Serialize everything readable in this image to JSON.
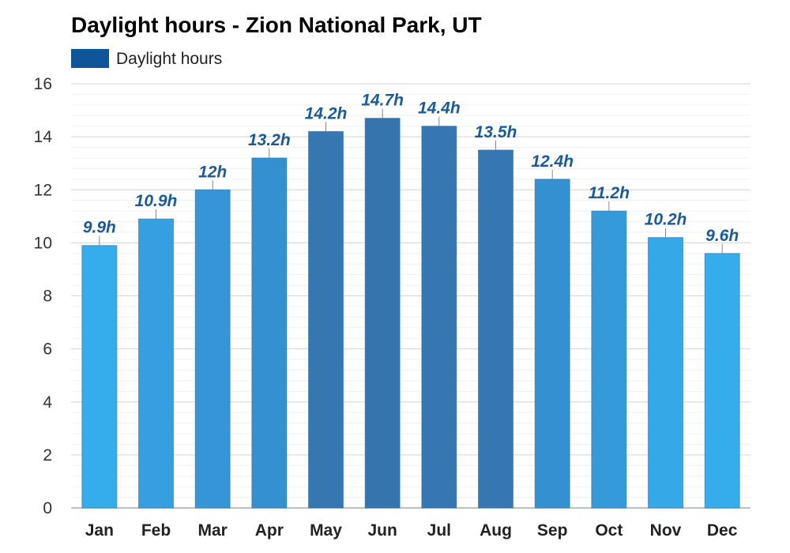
{
  "chart_data": {
    "type": "bar",
    "title": "Daylight hours - Zion National Park, UT",
    "xlabel": "",
    "ylabel": "",
    "ylim": [
      0,
      16
    ],
    "yticks": [
      0,
      2,
      4,
      6,
      8,
      10,
      12,
      14,
      16
    ],
    "grid": true,
    "legend_position": "top-left",
    "categories": [
      "Jan",
      "Feb",
      "Mar",
      "Apr",
      "May",
      "Jun",
      "Jul",
      "Aug",
      "Sep",
      "Oct",
      "Nov",
      "Dec"
    ],
    "series": [
      {
        "name": "Daylight hours",
        "color": "#0e5699",
        "values": [
          9.9,
          10.9,
          12,
          13.2,
          14.2,
          14.7,
          14.4,
          13.5,
          12.4,
          11.2,
          10.2,
          9.6
        ],
        "labels": [
          "9.9h",
          "10.9h",
          "12h",
          "13.2h",
          "14.2h",
          "14.7h",
          "14.4h",
          "13.5h",
          "12.4h",
          "11.2h",
          "10.2h",
          "9.6h"
        ],
        "bar_colors": [
          "#35aceb",
          "#359fdf",
          "#3595d6",
          "#3590d2",
          "#3677b2",
          "#3674ae",
          "#3677b2",
          "#3677b2",
          "#3590d2",
          "#359ad9",
          "#35a8e8",
          "#35aceb"
        ]
      }
    ]
  }
}
